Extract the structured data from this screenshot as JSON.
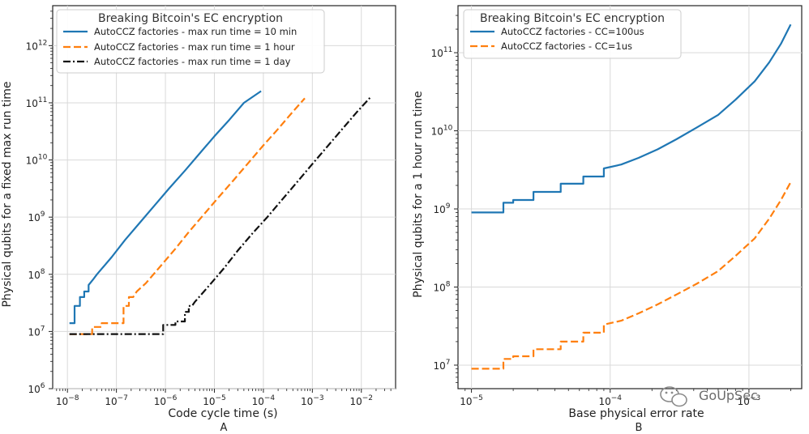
{
  "watermark": "GoUpSec",
  "chart_data": [
    {
      "type": "line",
      "panel_label": "A",
      "title": "Breaking Bitcoin's EC encryption",
      "xlabel": "Code cycle time (s)",
      "ylabel": "Physical qubits for a fixed max run time",
      "x_scale": "log",
      "y_scale": "log",
      "xlim": [
        5e-09,
        0.05
      ],
      "ylim": [
        1000000.0,
        5000000000000.0
      ],
      "x_ticks": [
        1e-08,
        1e-07,
        1e-06,
        1e-05,
        0.0001,
        0.001,
        0.01
      ],
      "x_tick_labels": [
        "10^-8",
        "10^-7",
        "10^-6",
        "10^-5",
        "10^-4",
        "10^-3",
        "10^-2"
      ],
      "y_ticks": [
        1000000.0,
        10000000.0,
        100000000.0,
        1000000000.0,
        10000000000.0,
        100000000000.0,
        1000000000000.0
      ],
      "y_tick_labels": [
        "10^6",
        "10^7",
        "10^8",
        "10^9",
        "10^10",
        "10^11",
        "10^12"
      ],
      "grid": true,
      "legend_position": "top-left",
      "series": [
        {
          "name": "AutoCCZ factories - max run time = 10 min",
          "color": "#1f77b4",
          "dash": "solid",
          "x": [
            1.1e-08,
            1.4e-08,
            1.4e-08,
            1.8e-08,
            1.8e-08,
            2.2e-08,
            2.2e-08,
            2.7e-08,
            2.7e-08,
            3.3e-08,
            4e-08,
            8e-08,
            1.5e-07,
            3e-07,
            6e-07,
            1.2e-06,
            2.5e-06,
            5e-06,
            1e-05,
            2e-05,
            4e-05,
            9e-05
          ],
          "y": [
            14000000.0,
            14000000.0,
            28000000.0,
            28000000.0,
            40000000.0,
            40000000.0,
            50000000.0,
            50000000.0,
            65000000.0,
            80000000.0,
            100000000.0,
            200000000.0,
            400000000.0,
            800000000.0,
            1600000000.0,
            3200000000.0,
            6500000000.0,
            13000000000.0,
            26000000000.0,
            50000000000.0,
            100000000000.0,
            160000000000.0
          ]
        },
        {
          "name": "AutoCCZ factories - max run time = 1 hour",
          "color": "#ff7f0e",
          "dash": "dashed",
          "x": [
            1.1e-08,
            3.2e-08,
            3.2e-08,
            5e-08,
            5e-08,
            1.4e-07,
            1.4e-07,
            1.8e-07,
            1.8e-07,
            2.2e-07,
            2.6e-07,
            4e-07,
            8e-07,
            1.6e-06,
            3e-06,
            6e-06,
            1.2e-05,
            2.5e-05,
            5e-05,
            0.0001,
            0.0002,
            0.0004,
            0.0007
          ],
          "y": [
            9000000.0,
            9000000.0,
            12000000.0,
            12000000.0,
            14000000.0,
            14000000.0,
            28000000.0,
            28000000.0,
            40000000.0,
            40000000.0,
            50000000.0,
            70000000.0,
            140000000.0,
            280000000.0,
            550000000.0,
            1100000000.0,
            2200000000.0,
            4500000000.0,
            9000000000.0,
            18000000000.0,
            35000000000.0,
            70000000000.0,
            120000000000.0
          ]
        },
        {
          "name": "AutoCCZ factories - max run time = 1 day",
          "color": "#111111",
          "dash": "dashdot",
          "x": [
            1.1e-08,
            9e-07,
            9e-07,
            1.6e-06,
            1.6e-06,
            2.5e-06,
            2.5e-06,
            3e-06,
            3e-06,
            3.5e-06,
            4e-06,
            8e-06,
            1.6e-05,
            3e-05,
            6e-05,
            0.00012,
            0.00025,
            0.0005,
            0.001,
            0.002,
            0.004,
            0.008,
            0.016
          ],
          "y": [
            9000000.0,
            9000000.0,
            13000000.0,
            13000000.0,
            15000000.0,
            15000000.0,
            22000000.0,
            22000000.0,
            28000000.0,
            28000000.0,
            33000000.0,
            65000000.0,
            130000000.0,
            260000000.0,
            520000000.0,
            1000000000.0,
            2100000000.0,
            4200000000.0,
            8500000000.0,
            17000000000.0,
            34000000000.0,
            68000000000.0,
            130000000000.0
          ]
        }
      ]
    },
    {
      "type": "line",
      "panel_label": "B",
      "title": "Breaking Bitcoin's EC encryption",
      "xlabel": "Base physical error rate",
      "ylabel": "Physical qubits for a 1 hour run time",
      "x_scale": "log",
      "y_scale": "log",
      "xlim": [
        8e-06,
        0.0024
      ],
      "ylim": [
        5000000.0,
        400000000000.0
      ],
      "x_ticks": [
        1e-05,
        0.0001,
        0.001
      ],
      "x_tick_labels": [
        "10^-5",
        "10^-4",
        "10^-3"
      ],
      "y_ticks": [
        10000000.0,
        100000000.0,
        1000000000.0,
        10000000000.0,
        100000000000.0
      ],
      "y_tick_labels": [
        "10^7",
        "10^8",
        "10^9",
        "10^10",
        "10^11"
      ],
      "grid": true,
      "legend_position": "top-left",
      "series": [
        {
          "name": "AutoCCZ factories - CC=100us",
          "color": "#1f77b4",
          "dash": "solid",
          "x": [
            1e-05,
            1.7e-05,
            1.7e-05,
            2e-05,
            2e-05,
            2.8e-05,
            2.8e-05,
            4.4e-05,
            4.4e-05,
            6.4e-05,
            6.4e-05,
            9e-05,
            9e-05,
            0.00012,
            0.00016,
            0.00022,
            0.0003,
            0.00042,
            0.0006,
            0.0008,
            0.0011,
            0.0014,
            0.0017,
            0.002
          ],
          "y": [
            900000000.0,
            900000000.0,
            1200000000.0,
            1200000000.0,
            1300000000.0,
            1300000000.0,
            1650000000.0,
            1650000000.0,
            2100000000.0,
            2100000000.0,
            2600000000.0,
            2600000000.0,
            3300000000.0,
            3700000000.0,
            4500000000.0,
            5800000000.0,
            7800000000.0,
            11000000000.0,
            16000000000.0,
            25000000000.0,
            43000000000.0,
            75000000000.0,
            130000000000.0,
            230000000000.0
          ]
        },
        {
          "name": "AutoCCZ factories - CC=1us",
          "color": "#ff7f0e",
          "dash": "dashed",
          "x": [
            1e-05,
            1.7e-05,
            1.7e-05,
            2e-05,
            2e-05,
            2.8e-05,
            2.8e-05,
            4.4e-05,
            4.4e-05,
            6.4e-05,
            6.4e-05,
            9e-05,
            9e-05,
            0.00012,
            0.00016,
            0.00022,
            0.0003,
            0.00042,
            0.0006,
            0.0008,
            0.0011,
            0.0014,
            0.0017,
            0.002
          ],
          "y": [
            9000000.0,
            9000000.0,
            12000000.0,
            12000000.0,
            13000000.0,
            13000000.0,
            16000000.0,
            16000000.0,
            20000000.0,
            20000000.0,
            26000000.0,
            26000000.0,
            33000000.0,
            37000000.0,
            46000000.0,
            60000000.0,
            80000000.0,
            110000000.0,
            160000000.0,
            250000000.0,
            420000000.0,
            750000000.0,
            1300000000.0,
            2200000000.0
          ]
        }
      ]
    }
  ]
}
